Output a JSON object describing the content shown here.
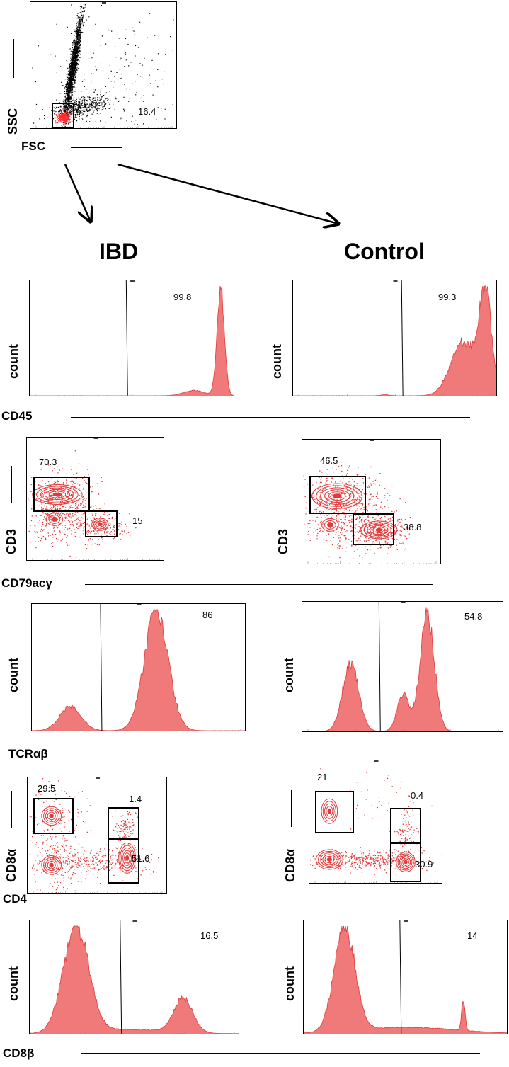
{
  "gating_plot": {
    "x_label": "FSC",
    "y_label": "SSC",
    "gate_value": "16.4"
  },
  "groups": [
    "IBD",
    "Control"
  ],
  "rows": [
    {
      "kind": "histogram",
      "x_label": "CD45",
      "y_label": "count",
      "ibd": {
        "gates": [
          "99.8"
        ]
      },
      "control": {
        "gates": [
          "99.3"
        ]
      }
    },
    {
      "kind": "contour",
      "x_label": "CD79acγ",
      "y_label": "CD3",
      "ibd": {
        "gates": [
          "70.3",
          "15"
        ]
      },
      "control": {
        "gates": [
          "46.5",
          "38.8"
        ]
      }
    },
    {
      "kind": "histogram",
      "x_label": "TCRαβ",
      "y_label": "count",
      "ibd": {
        "gates": [
          "86"
        ]
      },
      "control": {
        "gates": [
          "54.8"
        ]
      }
    },
    {
      "kind": "contour",
      "x_label": "CD4",
      "y_label": "CD8α",
      "ibd": {
        "gates": [
          "29.5",
          "1.4",
          "51.6"
        ]
      },
      "control": {
        "gates": [
          "21",
          "0.4",
          "30.9"
        ]
      }
    },
    {
      "kind": "histogram",
      "x_label": "CD8β",
      "y_label": "count",
      "ibd": {
        "gates": [
          "16.5"
        ]
      },
      "control": {
        "gates": [
          "14"
        ]
      }
    }
  ],
  "colors": {
    "event_fill": "#f07a7a",
    "event_stroke": "#e03a3a",
    "ink": "#000000"
  }
}
